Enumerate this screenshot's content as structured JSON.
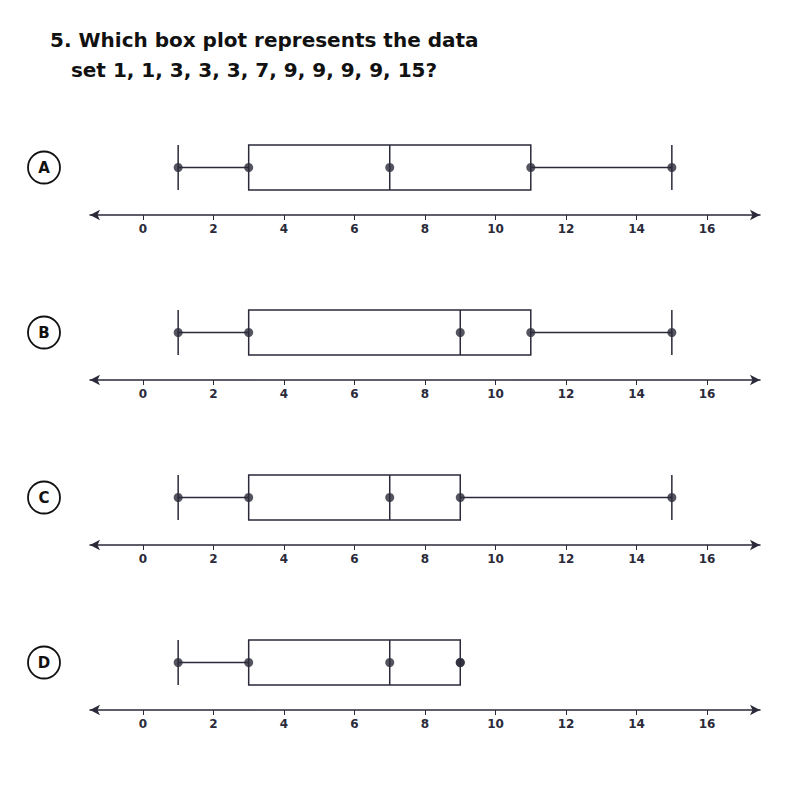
{
  "chart_data": {
    "type": "boxplot",
    "title": "5. Which box plot represents the data\n   set 1, 1, 3, 3, 3, 7, 9, 9, 9, 9, 15?",
    "categories": [
      "A",
      "B",
      "C",
      "D"
    ],
    "values": [
      [
        1,
        3,
        7,
        11,
        15
      ],
      [
        1,
        3,
        9,
        11,
        15
      ],
      [
        1,
        3,
        7,
        9,
        15
      ],
      [
        1,
        3,
        7,
        9,
        9
      ]
    ],
    "xlim": [
      -1.5,
      17.5
    ],
    "xticks": [
      0,
      2,
      4,
      6,
      8,
      10,
      12,
      14,
      16
    ],
    "color": "#2a2a3a",
    "marker": "circle",
    "grid": false
  }
}
